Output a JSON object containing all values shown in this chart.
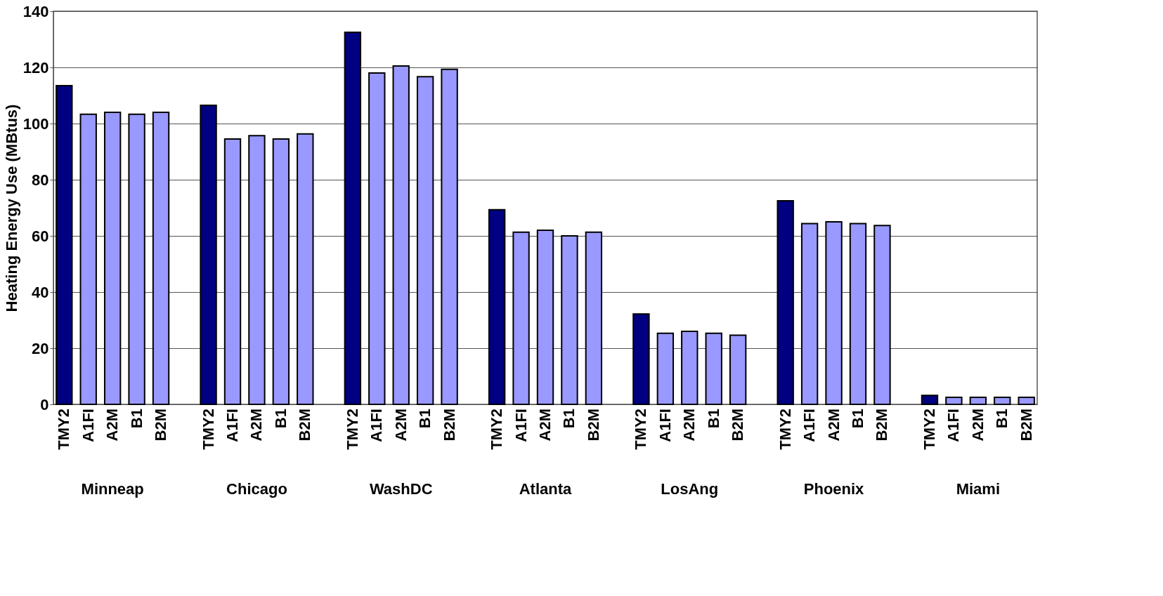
{
  "chart_data": {
    "type": "bar",
    "ylabel": "Heating Energy Use (MBtus)",
    "categories": [
      "Minneap",
      "Chicago",
      "WashDC",
      "Atlanta",
      "LosAng",
      "Phoenix",
      "Miami"
    ],
    "series": [
      {
        "name": "TMY2",
        "color": "#000080",
        "values": [
          113.5,
          106.5,
          132.5,
          69.3,
          32.2,
          72.5,
          3.2
        ]
      },
      {
        "name": "A1FI",
        "color": "#9999ff",
        "values": [
          103.3,
          94.5,
          118,
          61.3,
          25.3,
          64.4,
          2.5
        ]
      },
      {
        "name": "A2M",
        "color": "#9999ff",
        "values": [
          104,
          95.7,
          120.5,
          62,
          26,
          65,
          2.5
        ]
      },
      {
        "name": "B1",
        "color": "#9999ff",
        "values": [
          103.3,
          94.5,
          116.7,
          60,
          25.3,
          64.4,
          2.5
        ]
      },
      {
        "name": "B2M",
        "color": "#9999ff",
        "values": [
          104,
          96.3,
          119.3,
          61.3,
          24.6,
          63.7,
          2.5
        ]
      }
    ],
    "ylim": [
      0,
      140
    ],
    "yticks": [
      0,
      20,
      40,
      60,
      80,
      100,
      120,
      140
    ],
    "grid": "y",
    "legend": false
  }
}
